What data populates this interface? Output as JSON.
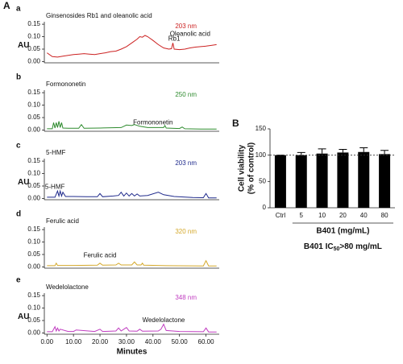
{
  "figure_labels": [
    "A",
    "B"
  ],
  "chart_data": [
    {
      "type": "line",
      "panel": "a",
      "title": "Ginsenosides Rb1 and oleanolic acid",
      "wavelength": "203 nm",
      "ylabel": "AU",
      "x": [
        0,
        2,
        4,
        6,
        8,
        10,
        12,
        14,
        16,
        18,
        20,
        22,
        24,
        26,
        28,
        30,
        32,
        34,
        35,
        36,
        37,
        38,
        40,
        42,
        44,
        46,
        47,
        47.5,
        48,
        50,
        52,
        54,
        56,
        58,
        60,
        62,
        64
      ],
      "series": [
        {
          "color": "#cc2222",
          "values": [
            0.035,
            0.02,
            0.018,
            0.022,
            0.025,
            0.028,
            0.03,
            0.032,
            0.03,
            0.028,
            0.032,
            0.035,
            0.04,
            0.042,
            0.05,
            0.06,
            0.075,
            0.09,
            0.1,
            0.098,
            0.105,
            0.1,
            0.085,
            0.068,
            0.055,
            0.05,
            0.052,
            0.075,
            0.05,
            0.048,
            0.05,
            0.055,
            0.058,
            0.06,
            0.062,
            0.065,
            0.068
          ]
        }
      ],
      "xlim": [
        -1,
        65
      ],
      "ylim": [
        -0.005,
        0.16
      ],
      "yticks": [
        {
          "value": 0,
          "label": "0.00"
        },
        {
          "value": 0.05,
          "label": "0.05"
        },
        {
          "value": 0.1,
          "label": "0.10"
        },
        {
          "value": 0.15,
          "label": "0.15"
        }
      ],
      "annotations": [
        {
          "text": "Oleanolic acid",
          "x": 54,
          "y": 0.11
        },
        {
          "text": "Rb1",
          "x": 48,
          "y": 0.09
        }
      ]
    },
    {
      "type": "line",
      "panel": "b",
      "title": "Formononetin",
      "wavelength": "250 nm",
      "x": [
        0,
        2,
        2.5,
        3,
        3.5,
        4,
        4.5,
        5,
        5.5,
        6,
        8,
        12,
        13,
        14,
        20,
        28,
        30,
        32,
        33,
        35,
        38,
        42,
        44,
        44.5,
        45,
        50,
        51,
        52,
        58,
        64
      ],
      "series": [
        {
          "color": "#2e8b2e",
          "values": [
            0.005,
            0.005,
            0.03,
            0.008,
            0.03,
            0.01,
            0.035,
            0.01,
            0.03,
            0.008,
            0.007,
            0.007,
            0.022,
            0.007,
            0.008,
            0.01,
            0.02,
            0.018,
            0.022,
            0.015,
            0.01,
            0.01,
            0.01,
            0.018,
            0.008,
            0.006,
            0.012,
            0.005,
            0.004,
            0.004
          ]
        }
      ],
      "xlim": [
        -1,
        65
      ],
      "ylim": [
        -0.005,
        0.16
      ],
      "yticks": [
        {
          "value": 0,
          "label": "0.00"
        },
        {
          "value": 0.05,
          "label": "0.05"
        },
        {
          "value": 0.1,
          "label": "0.10"
        },
        {
          "value": 0.15,
          "label": "0.15"
        }
      ],
      "annotations": [
        {
          "text": "Formononetin",
          "x": 40,
          "y": 0.03
        }
      ]
    },
    {
      "type": "line",
      "panel": "c",
      "title": "5-HMF",
      "wavelength": "203 nm",
      "ylabel": "AU",
      "x": [
        0,
        3,
        4,
        4.5,
        5,
        5.5,
        6,
        7,
        10,
        15,
        19,
        20,
        21,
        25,
        27,
        28,
        29,
        30,
        31,
        32,
        33,
        34,
        35,
        38,
        42,
        44,
        48,
        55,
        59,
        60,
        61,
        64
      ],
      "series": [
        {
          "color": "#1f2a8c",
          "values": [
            0.005,
            0.005,
            0.03,
            0.01,
            0.03,
            0.01,
            0.025,
            0.008,
            0.008,
            0.007,
            0.007,
            0.02,
            0.007,
            0.01,
            0.012,
            0.025,
            0.01,
            0.022,
            0.01,
            0.02,
            0.01,
            0.018,
            0.01,
            0.012,
            0.025,
            0.015,
            0.008,
            0.004,
            0.003,
            0.02,
            0.002,
            0.002
          ]
        }
      ],
      "xlim": [
        -1,
        65
      ],
      "ylim": [
        -0.005,
        0.16
      ],
      "yticks": [
        {
          "value": 0,
          "label": "0.00"
        },
        {
          "value": 0.05,
          "label": "0.05"
        },
        {
          "value": 0.1,
          "label": "0.10"
        },
        {
          "value": 0.15,
          "label": "0.15"
        }
      ],
      "annotations": [
        {
          "text": "5-HMF",
          "x": 3,
          "y": 0.045
        }
      ]
    },
    {
      "type": "line",
      "panel": "d",
      "title": "Ferulic acid",
      "wavelength": "320 nm",
      "x": [
        0,
        3,
        3.5,
        4,
        10,
        19,
        20,
        21,
        26,
        27,
        28,
        32,
        33,
        34,
        35.5,
        36,
        36.5,
        45,
        59,
        60,
        61,
        64
      ],
      "series": [
        {
          "color": "#d4a82a",
          "values": [
            0.005,
            0.005,
            0.015,
            0.006,
            0.006,
            0.007,
            0.015,
            0.007,
            0.008,
            0.015,
            0.008,
            0.008,
            0.02,
            0.008,
            0.008,
            0.015,
            0.007,
            0.005,
            0.004,
            0.025,
            0.004,
            0.004
          ]
        }
      ],
      "xlim": [
        -1,
        65
      ],
      "ylim": [
        -0.005,
        0.16
      ],
      "yticks": [
        {
          "value": 0,
          "label": "0.00"
        },
        {
          "value": 0.05,
          "label": "0.05"
        },
        {
          "value": 0.1,
          "label": "0.10"
        },
        {
          "value": 0.15,
          "label": "0.15"
        }
      ],
      "annotations": [
        {
          "text": "Ferulic acid",
          "x": 20,
          "y": 0.045
        }
      ]
    },
    {
      "type": "line",
      "panel": "e",
      "title": "Wedelolactone",
      "wavelength": "348 nm",
      "ylabel": "AU",
      "xlabel": "Minutes",
      "x": [
        0,
        2,
        3,
        3.5,
        4,
        4.5,
        5,
        8,
        10,
        11,
        18,
        20,
        21,
        26,
        27,
        28,
        29,
        30,
        31,
        34,
        35,
        36,
        42,
        43,
        44,
        45,
        50,
        59,
        60,
        61,
        64
      ],
      "series": [
        {
          "color": "#c03cc0",
          "values": [
            0.005,
            0.005,
            0.025,
            0.008,
            0.02,
            0.008,
            0.015,
            0.006,
            0.006,
            0.012,
            0.006,
            0.015,
            0.006,
            0.008,
            0.02,
            0.008,
            0.015,
            0.022,
            0.008,
            0.007,
            0.015,
            0.007,
            0.008,
            0.015,
            0.035,
            0.01,
            0.006,
            0.005,
            0.02,
            0.004,
            0.004
          ]
        }
      ],
      "xlim": [
        -1,
        65
      ],
      "ylim": [
        -0.005,
        0.16
      ],
      "yticks": [
        {
          "value": 0,
          "label": "0.00"
        },
        {
          "value": 0.05,
          "label": "0.05"
        },
        {
          "value": 0.1,
          "label": "0.10"
        },
        {
          "value": 0.15,
          "label": "0.15"
        }
      ],
      "xticks": [
        {
          "value": 0,
          "label": "0.00"
        },
        {
          "value": 10,
          "label": "10.00"
        },
        {
          "value": 20,
          "label": "20.00"
        },
        {
          "value": 30,
          "label": "30.00"
        },
        {
          "value": 40,
          "label": "40.00"
        },
        {
          "value": 50,
          "label": "50.00"
        },
        {
          "value": 60,
          "label": "60.00"
        }
      ],
      "annotations": [
        {
          "text": "Wedelolactone",
          "x": 44,
          "y": 0.05
        }
      ]
    },
    {
      "type": "bar",
      "ylabel": [
        "Cell viability",
        "(% of control)"
      ],
      "xlabel": "B401 (mg/mL)",
      "footnote": {
        "prefix": "B401 IC",
        "subscript": "50",
        "suffix": ">80 mg/mL"
      },
      "categories": [
        "Ctrl",
        "5",
        "10",
        "20",
        "40",
        "80"
      ],
      "values": [
        100,
        100,
        103,
        105,
        106,
        102
      ],
      "errors": [
        0,
        5,
        9,
        6,
        8,
        7
      ],
      "color": "#000000",
      "ylim": [
        0,
        150
      ],
      "yticks": [
        0,
        50,
        100,
        150
      ],
      "reference_line": 100
    }
  ]
}
